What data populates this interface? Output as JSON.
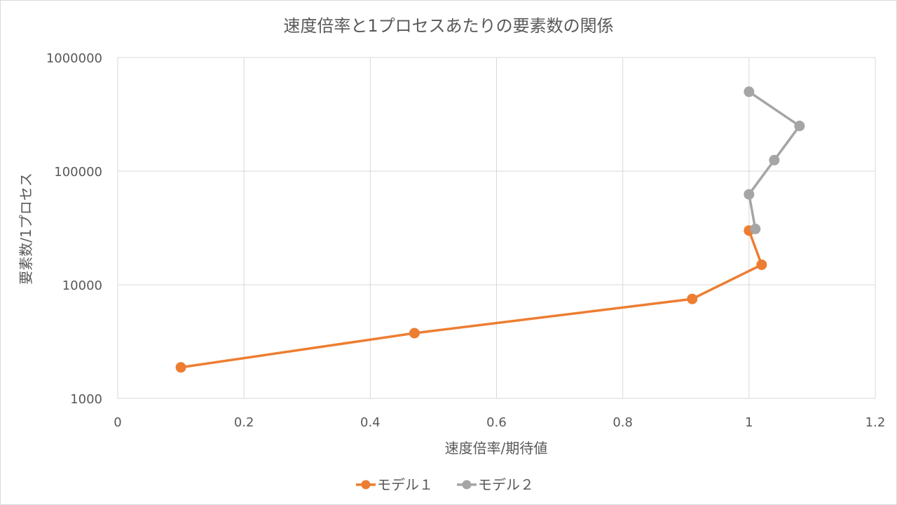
{
  "chart_data": {
    "type": "line",
    "title": "速度倍率と1プロセスあたりの要素数の関係",
    "xlabel": "速度倍率/期待値",
    "ylabel": "要素数/1プロセス",
    "xlim": [
      0,
      1.2
    ],
    "ylim": [
      1000,
      1000000
    ],
    "yscale": "log",
    "x_ticks": [
      "0",
      "0.2",
      "0.4",
      "0.6",
      "0.8",
      "1",
      "1.2"
    ],
    "y_ticks": [
      "1000",
      "10000",
      "100000",
      "1000000"
    ],
    "grid": true,
    "legend": "bottom",
    "series": [
      {
        "name": "モデル１",
        "color": "#ed7d31",
        "points": [
          {
            "x": 0.1,
            "y": 1875
          },
          {
            "x": 0.47,
            "y": 3750
          },
          {
            "x": 0.91,
            "y": 7500
          },
          {
            "x": 1.02,
            "y": 15000
          },
          {
            "x": 1.0,
            "y": 30000
          }
        ]
      },
      {
        "name": "モデル２",
        "color": "#a5a5a5",
        "points": [
          {
            "x": 1.01,
            "y": 31000
          },
          {
            "x": 1.0,
            "y": 62500
          },
          {
            "x": 1.04,
            "y": 125000
          },
          {
            "x": 1.08,
            "y": 250000
          },
          {
            "x": 1.0,
            "y": 500000
          }
        ]
      }
    ]
  }
}
